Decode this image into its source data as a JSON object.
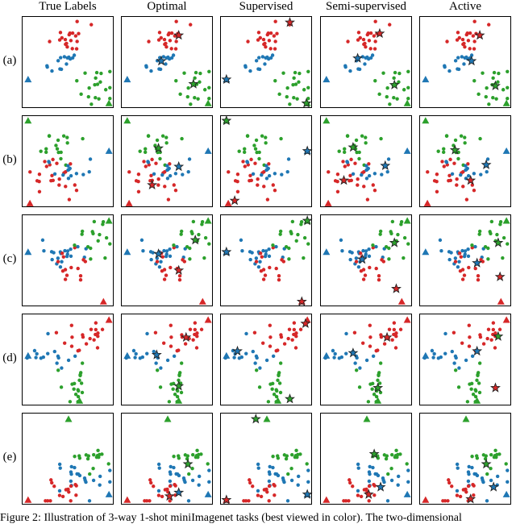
{
  "colors": {
    "red": "#d62728",
    "blue": "#1f77b4",
    "green": "#2ca02c",
    "star_edge": "#222222"
  },
  "columns": [
    "True Labels",
    "Optimal",
    "Supervised",
    "Semi-supervised",
    "Active"
  ],
  "rows": [
    "(a)",
    "(b)",
    "(c)",
    "(d)",
    "(e)"
  ],
  "caption": "Figure 2: Illustration of 3-way 1-shot miniImagenet tasks (best viewed in color). The two-dimensional",
  "chart_data": {
    "type": "scatter",
    "x_range": [
      0,
      1
    ],
    "y_range": [
      0,
      1
    ],
    "rows": [
      {
        "label": "(a)",
        "clusters": [
          {
            "class": "red",
            "cx": 0.52,
            "cy": 0.78,
            "sx": 0.1,
            "sy": 0.09,
            "n": 20,
            "seed": 11
          },
          {
            "class": "blue",
            "cx": 0.42,
            "cy": 0.52,
            "sx": 0.13,
            "sy": 0.06,
            "n": 14,
            "seed": 12
          },
          {
            "class": "green",
            "cx": 0.75,
            "cy": 0.28,
            "sx": 0.13,
            "sy": 0.13,
            "n": 18,
            "seed": 13
          }
        ],
        "triangles": [
          {
            "class": "blue",
            "x": 0.06,
            "y": 0.32
          },
          {
            "class": "green",
            "x": 0.94,
            "y": 0.06
          }
        ],
        "stars": {
          "Optimal": [
            {
              "class": "red",
              "x": 0.62,
              "y": 0.8
            },
            {
              "class": "blue",
              "x": 0.43,
              "y": 0.52
            },
            {
              "class": "green",
              "x": 0.78,
              "y": 0.27
            }
          ],
          "Supervised": [
            {
              "class": "red",
              "x": 0.75,
              "y": 0.94
            },
            {
              "class": "blue",
              "x": 0.06,
              "y": 0.32
            },
            {
              "class": "green",
              "x": 0.93,
              "y": 0.06
            }
          ],
          "Semi-supervised": [
            {
              "class": "red",
              "x": 0.64,
              "y": 0.82
            },
            {
              "class": "blue",
              "x": 0.4,
              "y": 0.55
            },
            {
              "class": "green",
              "x": 0.8,
              "y": 0.26
            }
          ],
          "Active": [
            {
              "class": "red",
              "x": 0.65,
              "y": 0.8
            },
            {
              "class": "blue",
              "x": 0.56,
              "y": 0.52
            },
            {
              "class": "green",
              "x": 0.82,
              "y": 0.25
            }
          ]
        }
      },
      {
        "label": "(b)",
        "clusters": [
          {
            "class": "green",
            "cx": 0.42,
            "cy": 0.62,
            "sx": 0.12,
            "sy": 0.14,
            "n": 16,
            "seed": 21
          },
          {
            "class": "red",
            "cx": 0.28,
            "cy": 0.28,
            "sx": 0.15,
            "sy": 0.11,
            "n": 22,
            "seed": 22
          },
          {
            "class": "blue",
            "cx": 0.55,
            "cy": 0.42,
            "sx": 0.18,
            "sy": 0.06,
            "n": 14,
            "seed": 23
          }
        ],
        "triangles": [
          {
            "class": "green",
            "x": 0.06,
            "y": 0.95
          },
          {
            "class": "blue",
            "x": 0.94,
            "y": 0.62
          },
          {
            "class": "red",
            "x": 0.08,
            "y": 0.05
          }
        ],
        "stars": {
          "Optimal": [
            {
              "class": "green",
              "x": 0.4,
              "y": 0.65
            },
            {
              "class": "blue",
              "x": 0.62,
              "y": 0.45
            },
            {
              "class": "red",
              "x": 0.33,
              "y": 0.25
            }
          ],
          "Supervised": [
            {
              "class": "green",
              "x": 0.06,
              "y": 0.95
            },
            {
              "class": "blue",
              "x": 0.94,
              "y": 0.62
            },
            {
              "class": "red",
              "x": 0.15,
              "y": 0.08
            }
          ],
          "Semi-supervised": [
            {
              "class": "green",
              "x": 0.35,
              "y": 0.66
            },
            {
              "class": "blue",
              "x": 0.7,
              "y": 0.46
            },
            {
              "class": "red",
              "x": 0.25,
              "y": 0.3
            }
          ],
          "Active": [
            {
              "class": "green",
              "x": 0.38,
              "y": 0.63
            },
            {
              "class": "blue",
              "x": 0.72,
              "y": 0.47
            },
            {
              "class": "red",
              "x": 0.55,
              "y": 0.3
            }
          ]
        }
      },
      {
        "label": "(c)",
        "clusters": [
          {
            "class": "blue",
            "cx": 0.42,
            "cy": 0.56,
            "sx": 0.16,
            "sy": 0.07,
            "n": 20,
            "seed": 31
          },
          {
            "class": "red",
            "cx": 0.55,
            "cy": 0.42,
            "sx": 0.09,
            "sy": 0.12,
            "n": 14,
            "seed": 32
          },
          {
            "class": "green",
            "cx": 0.78,
            "cy": 0.72,
            "sx": 0.12,
            "sy": 0.12,
            "n": 16,
            "seed": 33
          }
        ],
        "triangles": [
          {
            "class": "blue",
            "x": 0.06,
            "y": 0.6
          },
          {
            "class": "green",
            "x": 0.94,
            "y": 0.94
          },
          {
            "class": "red",
            "x": 0.88,
            "y": 0.06
          }
        ],
        "stars": {
          "Optimal": [
            {
              "class": "blue",
              "x": 0.4,
              "y": 0.58
            },
            {
              "class": "green",
              "x": 0.8,
              "y": 0.73
            },
            {
              "class": "red",
              "x": 0.62,
              "y": 0.4
            }
          ],
          "Supervised": [
            {
              "class": "blue",
              "x": 0.06,
              "y": 0.6
            },
            {
              "class": "green",
              "x": 0.94,
              "y": 0.94
            },
            {
              "class": "red",
              "x": 0.88,
              "y": 0.06
            }
          ],
          "Semi-supervised": [
            {
              "class": "blue",
              "x": 0.45,
              "y": 0.52
            },
            {
              "class": "green",
              "x": 0.8,
              "y": 0.7
            },
            {
              "class": "red",
              "x": 0.82,
              "y": 0.2
            }
          ],
          "Active": [
            {
              "class": "blue",
              "x": 0.62,
              "y": 0.48
            },
            {
              "class": "green",
              "x": 0.85,
              "y": 0.7
            },
            {
              "class": "red",
              "x": 0.87,
              "y": 0.33
            }
          ]
        }
      },
      {
        "label": "(d)",
        "clusters": [
          {
            "class": "red",
            "cx": 0.68,
            "cy": 0.76,
            "sx": 0.14,
            "sy": 0.1,
            "n": 20,
            "seed": 41
          },
          {
            "class": "blue",
            "cx": 0.3,
            "cy": 0.58,
            "sx": 0.15,
            "sy": 0.08,
            "n": 15,
            "seed": 42
          },
          {
            "class": "green",
            "cx": 0.6,
            "cy": 0.2,
            "sx": 0.1,
            "sy": 0.12,
            "n": 18,
            "seed": 43
          }
        ],
        "triangles": [
          {
            "class": "red",
            "x": 0.94,
            "y": 0.94
          },
          {
            "class": "blue",
            "x": 0.06,
            "y": 0.55
          },
          {
            "class": "green",
            "x": 0.62,
            "y": 0.06
          }
        ],
        "stars": {
          "Optimal": [
            {
              "class": "red",
              "x": 0.7,
              "y": 0.75
            },
            {
              "class": "blue",
              "x": 0.38,
              "y": 0.56
            },
            {
              "class": "green",
              "x": 0.62,
              "y": 0.22
            }
          ],
          "Supervised": [
            {
              "class": "red",
              "x": 0.92,
              "y": 0.9
            },
            {
              "class": "blue",
              "x": 0.18,
              "y": 0.6
            },
            {
              "class": "green",
              "x": 0.75,
              "y": 0.08
            }
          ],
          "Semi-supervised": [
            {
              "class": "red",
              "x": 0.72,
              "y": 0.75
            },
            {
              "class": "blue",
              "x": 0.35,
              "y": 0.58
            },
            {
              "class": "green",
              "x": 0.62,
              "y": 0.2
            }
          ],
          "Active": [
            {
              "class": "red",
              "x": 0.82,
              "y": 0.2
            },
            {
              "class": "blue",
              "x": 0.62,
              "y": 0.6
            },
            {
              "class": "green",
              "x": 0.85,
              "y": 0.76
            }
          ]
        }
      },
      {
        "label": "(e)",
        "clusters": [
          {
            "class": "green",
            "cx": 0.72,
            "cy": 0.48,
            "sx": 0.1,
            "sy": 0.06,
            "n": 16,
            "seed": 51
          },
          {
            "class": "blue",
            "cx": 0.62,
            "cy": 0.28,
            "sx": 0.14,
            "sy": 0.09,
            "n": 22,
            "seed": 52
          },
          {
            "class": "red",
            "cx": 0.42,
            "cy": 0.12,
            "sx": 0.15,
            "sy": 0.08,
            "n": 16,
            "seed": 53
          }
        ],
        "triangles": [
          {
            "class": "green",
            "x": 0.5,
            "y": 0.94
          },
          {
            "class": "blue",
            "x": 0.94,
            "y": 0.12
          },
          {
            "class": "red",
            "x": 0.06,
            "y": 0.06
          }
        ],
        "stars": {
          "Optimal": [
            {
              "class": "green",
              "x": 0.72,
              "y": 0.45
            },
            {
              "class": "blue",
              "x": 0.62,
              "y": 0.14
            },
            {
              "class": "red",
              "x": 0.52,
              "y": 0.1
            }
          ],
          "Supervised": [
            {
              "class": "green",
              "x": 0.38,
              "y": 0.94
            },
            {
              "class": "blue",
              "x": 0.94,
              "y": 0.12
            },
            {
              "class": "red",
              "x": 0.06,
              "y": 0.06
            }
          ],
          "Semi-supervised": [
            {
              "class": "green",
              "x": 0.58,
              "y": 0.56
            },
            {
              "class": "blue",
              "x": 0.65,
              "y": 0.2
            },
            {
              "class": "red",
              "x": 0.52,
              "y": 0.12
            }
          ],
          "Active": [
            {
              "class": "green",
              "x": 0.72,
              "y": 0.45
            },
            {
              "class": "blue",
              "x": 0.8,
              "y": 0.2
            },
            {
              "class": "red",
              "x": 0.55,
              "y": 0.07
            }
          ]
        }
      }
    ]
  }
}
